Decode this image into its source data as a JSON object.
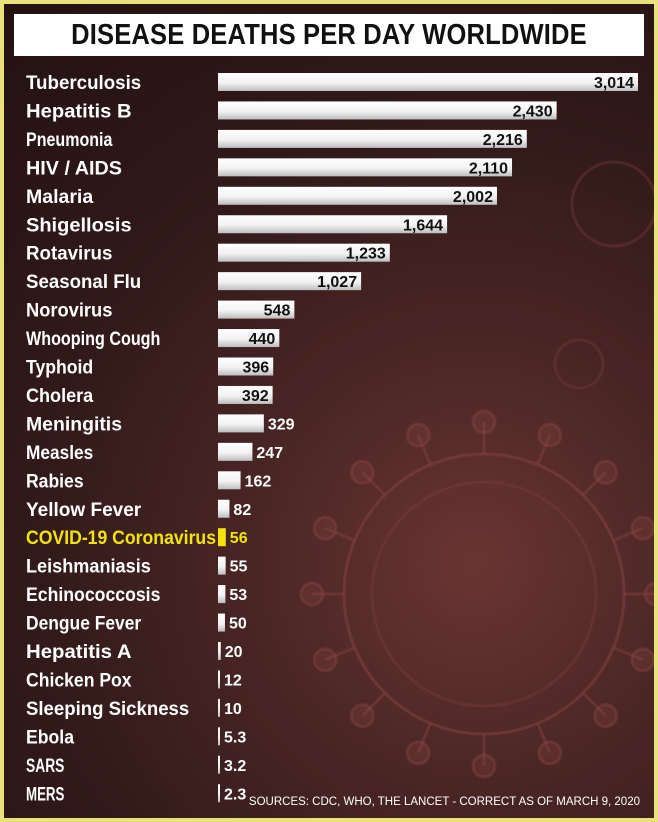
{
  "title": "DISEASE DEATHS PER DAY WORLDWIDE",
  "source": "SOURCES: CDC, WHO, THE LANCET - CORRECT AS OF MARCH 9, 2020",
  "colors": {
    "bar": "#ffffff",
    "highlight": "#f1e40c",
    "frame": "#e9e27a"
  },
  "chart_data": {
    "type": "bar",
    "orientation": "horizontal",
    "title": "DISEASE DEATHS PER DAY WORLDWIDE",
    "categories": [
      "Tuberculosis",
      "Hepatitis B",
      "Pneumonia",
      "HIV / AIDS",
      "Malaria",
      "Shigellosis",
      "Rotavirus",
      "Seasonal Flu",
      "Norovirus",
      "Whooping Cough",
      "Typhoid",
      "Cholera",
      "Meningitis",
      "Measles",
      "Rabies",
      "Yellow Fever",
      "COVID-19 Coronavirus",
      "Leishmaniasis",
      "Echinococcosis",
      "Dengue Fever",
      "Hepatitis A",
      "Chicken Pox",
      "Sleeping Sickness",
      "Ebola",
      "SARS",
      "MERS"
    ],
    "values": [
      3014,
      2430,
      2216,
      2110,
      2002,
      1644,
      1233,
      1027,
      548,
      440,
      396,
      392,
      329,
      247,
      162,
      82,
      56,
      55,
      53,
      50,
      20,
      12,
      10,
      5.3,
      3.2,
      2.3
    ],
    "value_labels": [
      "3,014",
      "2,430",
      "2,216",
      "2,110",
      "2,002",
      "1,644",
      "1,233",
      "1,027",
      "548",
      "440",
      "396",
      "392",
      "329",
      "247",
      "162",
      "82",
      "56",
      "55",
      "53",
      "50",
      "20",
      "12",
      "10",
      "5.3",
      "3.2",
      "2.3"
    ],
    "highlight": "COVID-19 Coronavirus",
    "xlim": [
      0,
      3014
    ],
    "grid": false,
    "legend": "none"
  }
}
